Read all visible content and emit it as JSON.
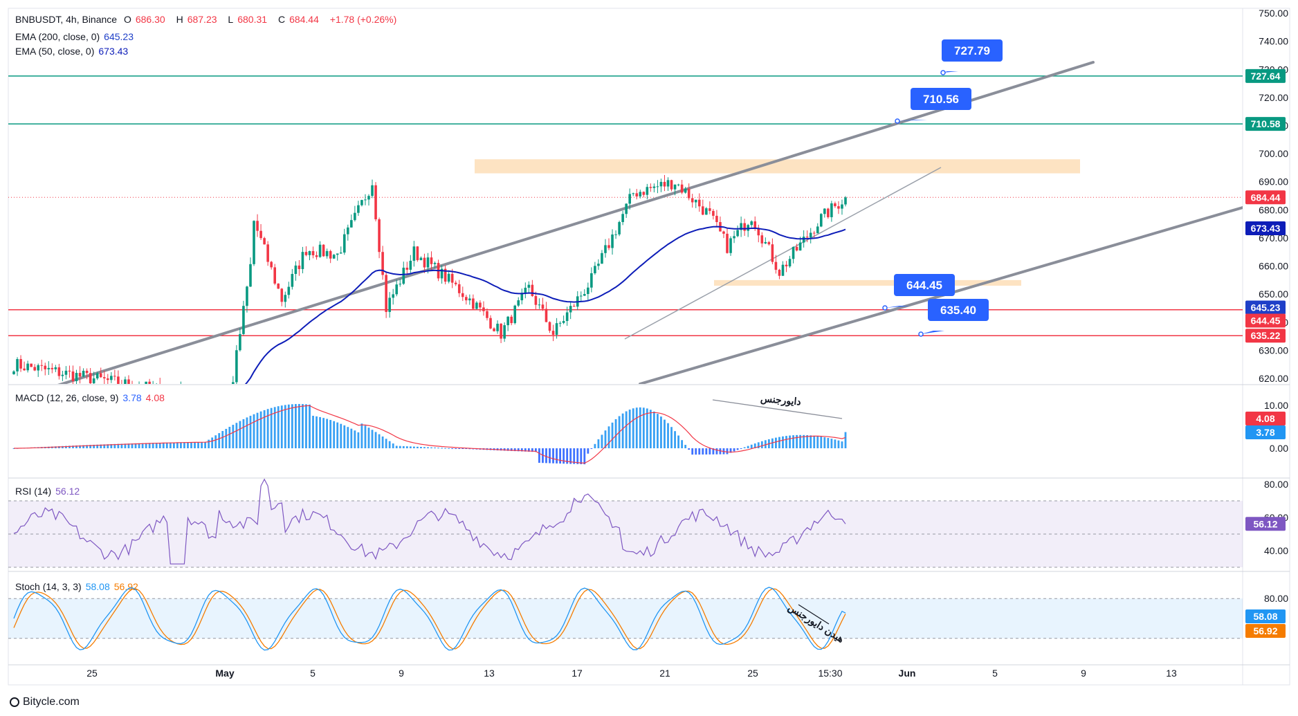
{
  "header": {
    "symbol": "BNBUSDT, 4h, Binance",
    "open_label": "O",
    "open": "686.30",
    "high_label": "H",
    "high": "687.23",
    "low_label": "L",
    "low": "680.31",
    "close_label": "C",
    "close": "684.44",
    "change": "+1.78 (+0.26%)",
    "ema200_label": "EMA (200, close, 0)",
    "ema200_value": "645.23",
    "ema50_label": "EMA (50, close, 0)",
    "ema50_value": "673.43"
  },
  "panes": {
    "macd": {
      "label": "MACD (12, 26, close, 9)",
      "macd_value": "3.78",
      "signal_value": "4.08",
      "annotation": "دایورجنس",
      "yticks": [
        "10.00",
        "0.00"
      ],
      "ylim": [
        -2,
        12
      ]
    },
    "rsi": {
      "label": "RSI (14)",
      "value": "56.12",
      "yticks": [
        "80.00",
        "60.00",
        "40.00"
      ],
      "ylim": [
        25,
        85
      ]
    },
    "stoch": {
      "label": "Stoch (14, 3, 3)",
      "k_value": "58.08",
      "d_value": "56.92",
      "annotation": "هیدن دایورجنس",
      "yticks": [
        "80.00"
      ],
      "ylim": [
        0,
        100
      ]
    }
  },
  "price_axis": {
    "ticks": [
      "750.00",
      "740.00",
      "730.00",
      "720.00",
      "710.00",
      "700.00",
      "690.00",
      "680.00",
      "670.00",
      "660.00",
      "650.00",
      "640.00",
      "630.00",
      "620.00"
    ],
    "ylim": [
      618,
      751
    ]
  },
  "price_labels": [
    {
      "text": "727.64",
      "value": 727.64,
      "color": "#089981"
    },
    {
      "text": "710.58",
      "value": 710.58,
      "color": "#089981"
    },
    {
      "text": "684.44",
      "value": 684.44,
      "color": "#f23645"
    },
    {
      "text": "673.43",
      "value": 673.43,
      "color": "#0d1db8"
    },
    {
      "text": "645.23",
      "value": 645.23,
      "color": "#1e3fc8"
    },
    {
      "text": "644.45",
      "value": 644.45,
      "color": "#f23645"
    },
    {
      "text": "635.22",
      "value": 635.22,
      "color": "#f23645"
    }
  ],
  "macd_labels": [
    {
      "text": "4.08",
      "color": "#f23645"
    },
    {
      "text": "3.78",
      "color": "#2196f3"
    }
  ],
  "rsi_labels": [
    {
      "text": "56.12",
      "color": "#7e57c2"
    }
  ],
  "stoch_labels": [
    {
      "text": "58.08",
      "color": "#2196f3"
    },
    {
      "text": "56.92",
      "color": "#f57c00"
    }
  ],
  "time_axis": {
    "ticks": [
      "25",
      "May",
      "5",
      "9",
      "13",
      "17",
      "21",
      "25",
      "15:30",
      "Jun",
      "5",
      "9",
      "13"
    ]
  },
  "callouts": [
    "727.79",
    "710.56",
    "644.45",
    "635.40"
  ],
  "footer": {
    "brand": "Bitycle.com"
  },
  "colors": {
    "up": "#089981",
    "down": "#f23645",
    "ema50": "#0d1db8",
    "ema200": "#1e3fc8",
    "channel": "#8a8e99",
    "zone": "#fde3c2",
    "callout": "#2962ff"
  },
  "chart_data": {
    "type": "candlestick",
    "symbol": "BNBUSDT",
    "interval": "4h",
    "x_range": [
      "Apr 21",
      "Jun 15"
    ],
    "ylim": [
      618,
      751
    ],
    "current_price": 684.44,
    "horizontal_levels": [
      {
        "value": 727.64,
        "color": "#089981"
      },
      {
        "value": 710.58,
        "color": "#089981"
      },
      {
        "value": 644.45,
        "color": "#f23645"
      },
      {
        "value": 635.22,
        "color": "#f23645"
      }
    ],
    "zones": [
      {
        "from": 693,
        "to": 698,
        "x_from": "May 12",
        "x_to": "Jun 7"
      },
      {
        "from": 653,
        "to": 655,
        "x_from": "May 23",
        "x_to": "Jun 6"
      }
    ],
    "trendlines": [
      {
        "x": [
          "Apr 21",
          "Jun 8"
        ],
        "y": [
          620,
          732
        ]
      },
      {
        "x": [
          "May 18",
          "Jun 15"
        ],
        "y": [
          613,
          680
        ]
      },
      {
        "x": [
          "May 19",
          "Jun 3"
        ],
        "y": [
          634,
          695
        ]
      }
    ],
    "series": [
      {
        "name": "EMA (200, close, 0)",
        "last": 645.23
      },
      {
        "name": "EMA (50, close, 0)",
        "last": 673.43
      }
    ],
    "macd": {
      "macd": 3.78,
      "signal": 4.08
    },
    "rsi": 56.12,
    "stoch": {
      "k": 58.08,
      "d": 56.92
    }
  }
}
